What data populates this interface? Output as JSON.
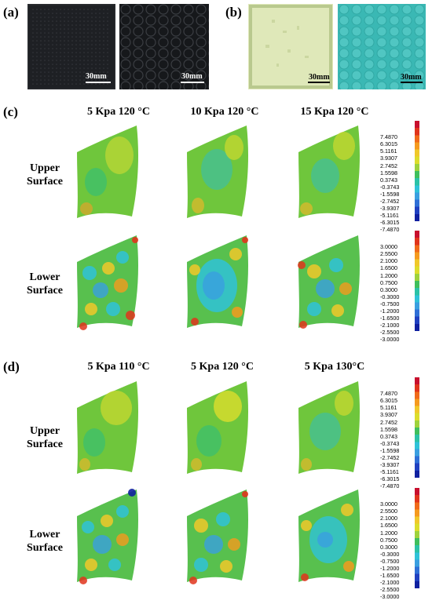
{
  "panels": {
    "a": "(a)",
    "b": "(b)",
    "c": "(c)",
    "d": "(d)"
  },
  "photos": {
    "scale_label": "30mm",
    "colors": [
      "#1e2024",
      "#16181b",
      "#dfe8b9",
      "#3ab8b4"
    ]
  },
  "panel_c": {
    "columns": [
      "5 Kpa 120 °C",
      "10 Kpa 120 °C",
      "15 Kpa 120 °C"
    ]
  },
  "panel_d": {
    "columns": [
      "5 Kpa 110 °C",
      "5 Kpa 120 °C",
      "5 Kpa  130°C"
    ]
  },
  "rows": {
    "upper_line1": "Upper",
    "upper_line2": "Surface",
    "lower_line1": "Lower",
    "lower_line2": "Surface"
  },
  "legend_upper": [
    "7.4870",
    "6.3015",
    "5.1161",
    "3.9307",
    "2.7452",
    "1.5598",
    "0.3743",
    "-0.3743",
    "-1.5598",
    "-2.7452",
    "-3.9307",
    "-5.1161",
    "-6.3015",
    "-7.4870"
  ],
  "legend_lower": [
    "3.0000",
    "2.5500",
    "2.1000",
    "1.6500",
    "1.2000",
    "0.7500",
    "0.3000",
    "-0.3000",
    "-0.7500",
    "-1.2000",
    "-1.6500",
    "-2.1000",
    "-2.5500",
    "-3.0000"
  ],
  "colormap": [
    "#c8102e",
    "#e0341c",
    "#f06a1a",
    "#f59a1e",
    "#f0c82a",
    "#dcdd2c",
    "#9ed23c",
    "#3fbf5c",
    "#2bc2a6",
    "#2fc2d8",
    "#3a9fe0",
    "#2f6fd6",
    "#2040c0",
    "#1020a0"
  ]
}
